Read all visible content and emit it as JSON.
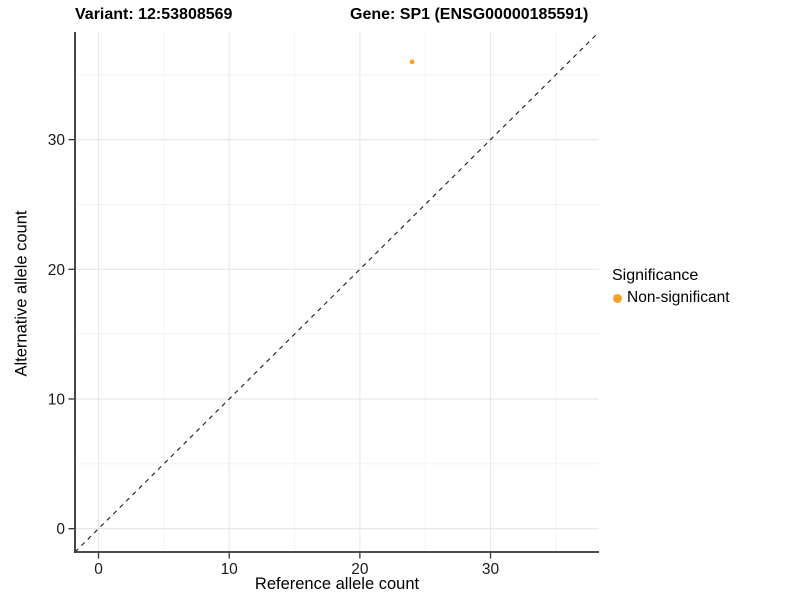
{
  "header": {
    "variant_title": "Variant: 12:53808569",
    "gene_title": "Gene: SP1 (ENSG00000185591)"
  },
  "chart_data": {
    "type": "scatter",
    "titles": [
      "Variant: 12:53808569",
      "Gene: SP1 (ENSG00000185591)"
    ],
    "xlabel": "Reference allele count",
    "ylabel": "Alternative allele count",
    "xlim": [
      -1.8,
      38.3
    ],
    "ylim": [
      -1.8,
      38.3
    ],
    "xticks": [
      0,
      10,
      20,
      30
    ],
    "yticks": [
      0,
      10,
      20,
      30
    ],
    "xticks_minor": [
      5,
      15,
      25,
      35
    ],
    "yticks_minor": [
      5,
      15,
      25,
      35
    ],
    "grid": "major+minor",
    "identity_line": {
      "slope": 1,
      "intercept": 0,
      "style": "dashed",
      "color": "#1a1a1a"
    },
    "points": [
      {
        "x": 24,
        "y": 36,
        "series": "Non-significant",
        "color": "#F9A229"
      }
    ],
    "legend": {
      "title": "Significance",
      "position": "right",
      "items": [
        {
          "label": "Non-significant",
          "color": "#F9A229",
          "marker": "circle"
        }
      ]
    }
  },
  "colors": {
    "point": "#F9A229",
    "grid_major": "#E8E8E8",
    "grid_minor": "#F4F4F4",
    "axis_line": "#333333",
    "tick_text": "#1a1a1a"
  }
}
